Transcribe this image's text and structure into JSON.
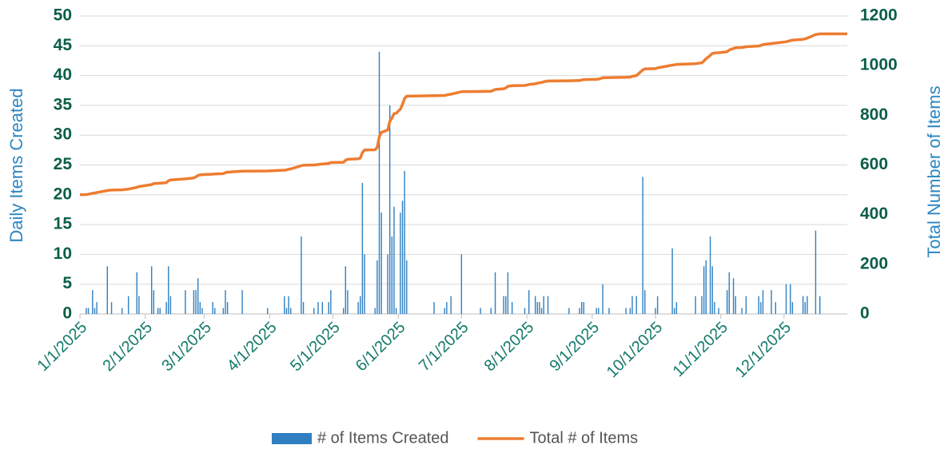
{
  "chart_data": {
    "type": "bar_line",
    "y_label": "Daily Items Created",
    "y2_label": "Total Number of  Items",
    "x": [
      "1/1/2025",
      "1/4/2025",
      "1/5/2025",
      "1/7/2025",
      "1/8/2025",
      "1/9/2025",
      "1/14/2025",
      "1/16/2025",
      "1/21/2025",
      "1/24/2025",
      "1/28/2025",
      "1/29/2025",
      "2/4/2025",
      "2/5/2025",
      "2/7/2025",
      "2/8/2025",
      "2/11/2025",
      "2/12/2025",
      "2/13/2025",
      "2/20/2025",
      "2/24/2025",
      "2/25/2025",
      "2/26/2025",
      "2/27/2025",
      "2/28/2025",
      "3/5/2025",
      "3/6/2025",
      "3/10/2025",
      "3/11/2025",
      "3/12/2025",
      "3/19/2025",
      "3/31/2025",
      "4/8/2025",
      "4/9/2025",
      "4/10/2025",
      "4/11/2025",
      "4/16/2025",
      "4/17/2025",
      "4/22/2025",
      "4/24/2025",
      "4/26/2025",
      "4/29/2025",
      "4/30/2025",
      "5/6/2025",
      "5/7/2025",
      "5/8/2025",
      "5/13/2025",
      "5/14/2025",
      "5/15/2025",
      "5/16/2025",
      "5/21/2025",
      "5/22/2025",
      "5/23/2025",
      "5/24/2025",
      "5/27/2025",
      "5/28/2025",
      "5/29/2025",
      "5/30/2025",
      "5/31/2025",
      "6/2/2025",
      "6/3/2025",
      "6/4/2025",
      "6/5/2025",
      "6/18/2025",
      "6/23/2025",
      "6/24/2025",
      "6/26/2025",
      "7/1/2025",
      "7/10/2025",
      "7/15/2025",
      "7/17/2025",
      "7/21/2025",
      "7/22/2025",
      "7/23/2025",
      "7/25/2025",
      "7/31/2025",
      "8/2/2025",
      "8/5/2025",
      "8/6/2025",
      "8/7/2025",
      "8/8/2025",
      "8/9/2025",
      "8/11/2025",
      "8/21/2025",
      "8/26/2025",
      "8/27/2025",
      "8/28/2025",
      "9/3/2025",
      "9/4/2025",
      "9/6/2025",
      "9/9/2025",
      "9/17/2025",
      "9/19/2025",
      "9/20/2025",
      "9/22/2025",
      "9/25/2025",
      "9/26/2025",
      "10/1/2025",
      "10/2/2025",
      "10/9/2025",
      "10/10/2025",
      "10/11/2025",
      "10/20/2025",
      "10/23/2025",
      "10/24/2025",
      "10/25/2025",
      "10/27/2025",
      "10/28/2025",
      "10/29/2025",
      "10/31/2025",
      "11/4/2025",
      "11/5/2025",
      "11/7/2025",
      "11/8/2025",
      "11/11/2025",
      "11/13/2025",
      "11/19/2025",
      "11/20/2025",
      "11/21/2025",
      "11/25/2025",
      "11/27/2025",
      "12/2/2025",
      "12/4/2025",
      "12/5/2025",
      "12/10/2025",
      "12/11/2025",
      "12/12/2025",
      "12/16/2025",
      "12/18/2025",
      "12/31/2025"
    ],
    "series": [
      {
        "name": "# of Items Created",
        "type": "bar",
        "color": "#2f7fc1",
        "values": [
          null,
          1,
          1,
          4,
          1,
          2,
          8,
          2,
          1,
          3,
          7,
          3,
          8,
          4,
          1,
          1,
          2,
          8,
          3,
          4,
          4,
          4,
          6,
          2,
          1,
          2,
          1,
          1,
          4,
          2,
          4,
          1,
          3,
          1,
          3,
          1,
          13,
          2,
          1,
          2,
          2,
          2,
          4,
          1,
          8,
          4,
          2,
          3,
          22,
          10,
          1,
          9,
          44,
          17,
          10,
          35,
          13,
          18,
          1,
          17,
          19,
          24,
          9,
          2,
          1,
          2,
          3,
          10,
          1,
          1,
          7,
          3,
          3,
          7,
          2,
          1,
          4,
          3,
          2,
          2,
          1,
          3,
          3,
          1,
          1,
          2,
          2,
          1,
          1,
          5,
          1,
          1,
          1,
          3,
          3,
          23,
          4,
          1,
          3,
          11,
          1,
          2,
          3,
          3,
          8,
          9,
          13,
          8,
          2,
          1,
          4,
          7,
          6,
          3,
          1,
          3,
          3,
          2,
          4,
          4,
          2,
          5,
          5,
          2,
          3,
          2,
          3,
          14,
          3,
          null
        ]
      },
      {
        "name": "Total # of Items",
        "type": "line",
        "axis": "y2",
        "color": "#ed7d31",
        "values": [
          480,
          481,
          482,
          486,
          487,
          489,
          497,
          499,
          500,
          503,
          510,
          513,
          521,
          525,
          526,
          527,
          529,
          537,
          540,
          544,
          548,
          552,
          558,
          560,
          561,
          563,
          564,
          565,
          569,
          571,
          575,
          576,
          579,
          580,
          583,
          584,
          597,
          599,
          600,
          602,
          604,
          606,
          610,
          611,
          619,
          623,
          625,
          628,
          650,
          660,
          661,
          670,
          714,
          731,
          741,
          776,
          789,
          807,
          808,
          825,
          844,
          868,
          877,
          879,
          880,
          882,
          885,
          895,
          896,
          897,
          904,
          907,
          910,
          917,
          919,
          920,
          924,
          927,
          929,
          931,
          932,
          935,
          938,
          939,
          940,
          942,
          944,
          945,
          946,
          951,
          952,
          953,
          954,
          957,
          960,
          983,
          987,
          988,
          991,
          1002,
          1003,
          1005,
          1008,
          1011,
          1019,
          1028,
          1041,
          1049,
          1051,
          1052,
          1056,
          1063,
          1069,
          1072,
          1073,
          1076,
          1079,
          1081,
          1085,
          1089,
          1091,
          1096,
          1101,
          1103,
          1106,
          1108,
          1111,
          1125,
          1128,
          1128
        ]
      }
    ],
    "xlim": [
      "1/1/2025",
      "12/31/2025"
    ],
    "xticks": [
      "1/1/2025",
      "2/1/2025",
      "3/1/2025",
      "4/1/2025",
      "5/1/2025",
      "6/1/2025",
      "7/1/2025",
      "8/1/2025",
      "9/1/2025",
      "10/1/2025",
      "11/1/2025",
      "12/1/2025"
    ],
    "ylim": [
      0,
      50
    ],
    "yticks": [
      0,
      5,
      10,
      15,
      20,
      25,
      30,
      35,
      40,
      45,
      50
    ],
    "y2lim": [
      0,
      1200
    ],
    "y2ticks": [
      0,
      200,
      400,
      600,
      800,
      1000,
      1200
    ],
    "grid": true,
    "legend": "bottom"
  }
}
